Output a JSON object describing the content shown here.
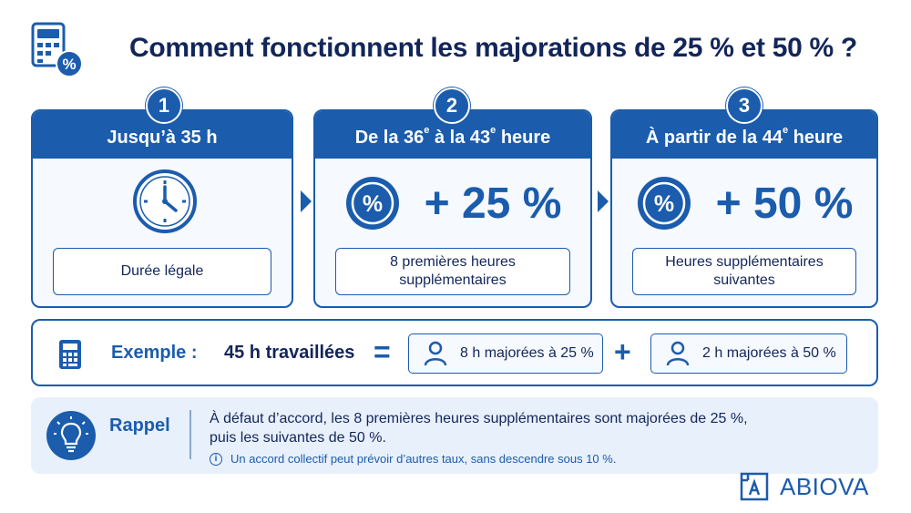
{
  "title": "Comment fonctionnent les majorations de 25 % et 50 % ?",
  "colors": {
    "primary": "#1b5cad",
    "text": "#13265a",
    "panel": "#e8f0fb"
  },
  "steps": [
    {
      "number": "1",
      "header": "Jusqu’à 35 h",
      "icon": "clock-icon",
      "label": "Durée légale"
    },
    {
      "number": "2",
      "header_parts": [
        "De la 36",
        "e",
        " à la 43",
        "e",
        " heure"
      ],
      "icon": "percent-badge-icon",
      "rate": "+ 25 %",
      "label": "8 premières heures supplémentaires"
    },
    {
      "number": "3",
      "header_parts": [
        "À partir de la 44",
        "e",
        " heure"
      ],
      "icon": "percent-badge-icon",
      "rate": "+ 50 %",
      "label": "Heures supplémentaires suivantes"
    }
  ],
  "example": {
    "label": "Exemple :",
    "hours": "45 h travaillées",
    "equals": "=",
    "part1": "8 h majorées à 25 %",
    "plus": "+",
    "part2": "2 h majorées à 50 %"
  },
  "rappel": {
    "label": "Rappel",
    "line1": "À défaut d’accord, les 8 premières heures supplémentaires sont majorées de 25 %,",
    "line2": "puis les suivantes de 50 %.",
    "note": "Un accord collectif peut prévoir d’autres taux, sans descendre sous 10 %."
  },
  "brand": {
    "name": "ABIOVA"
  }
}
